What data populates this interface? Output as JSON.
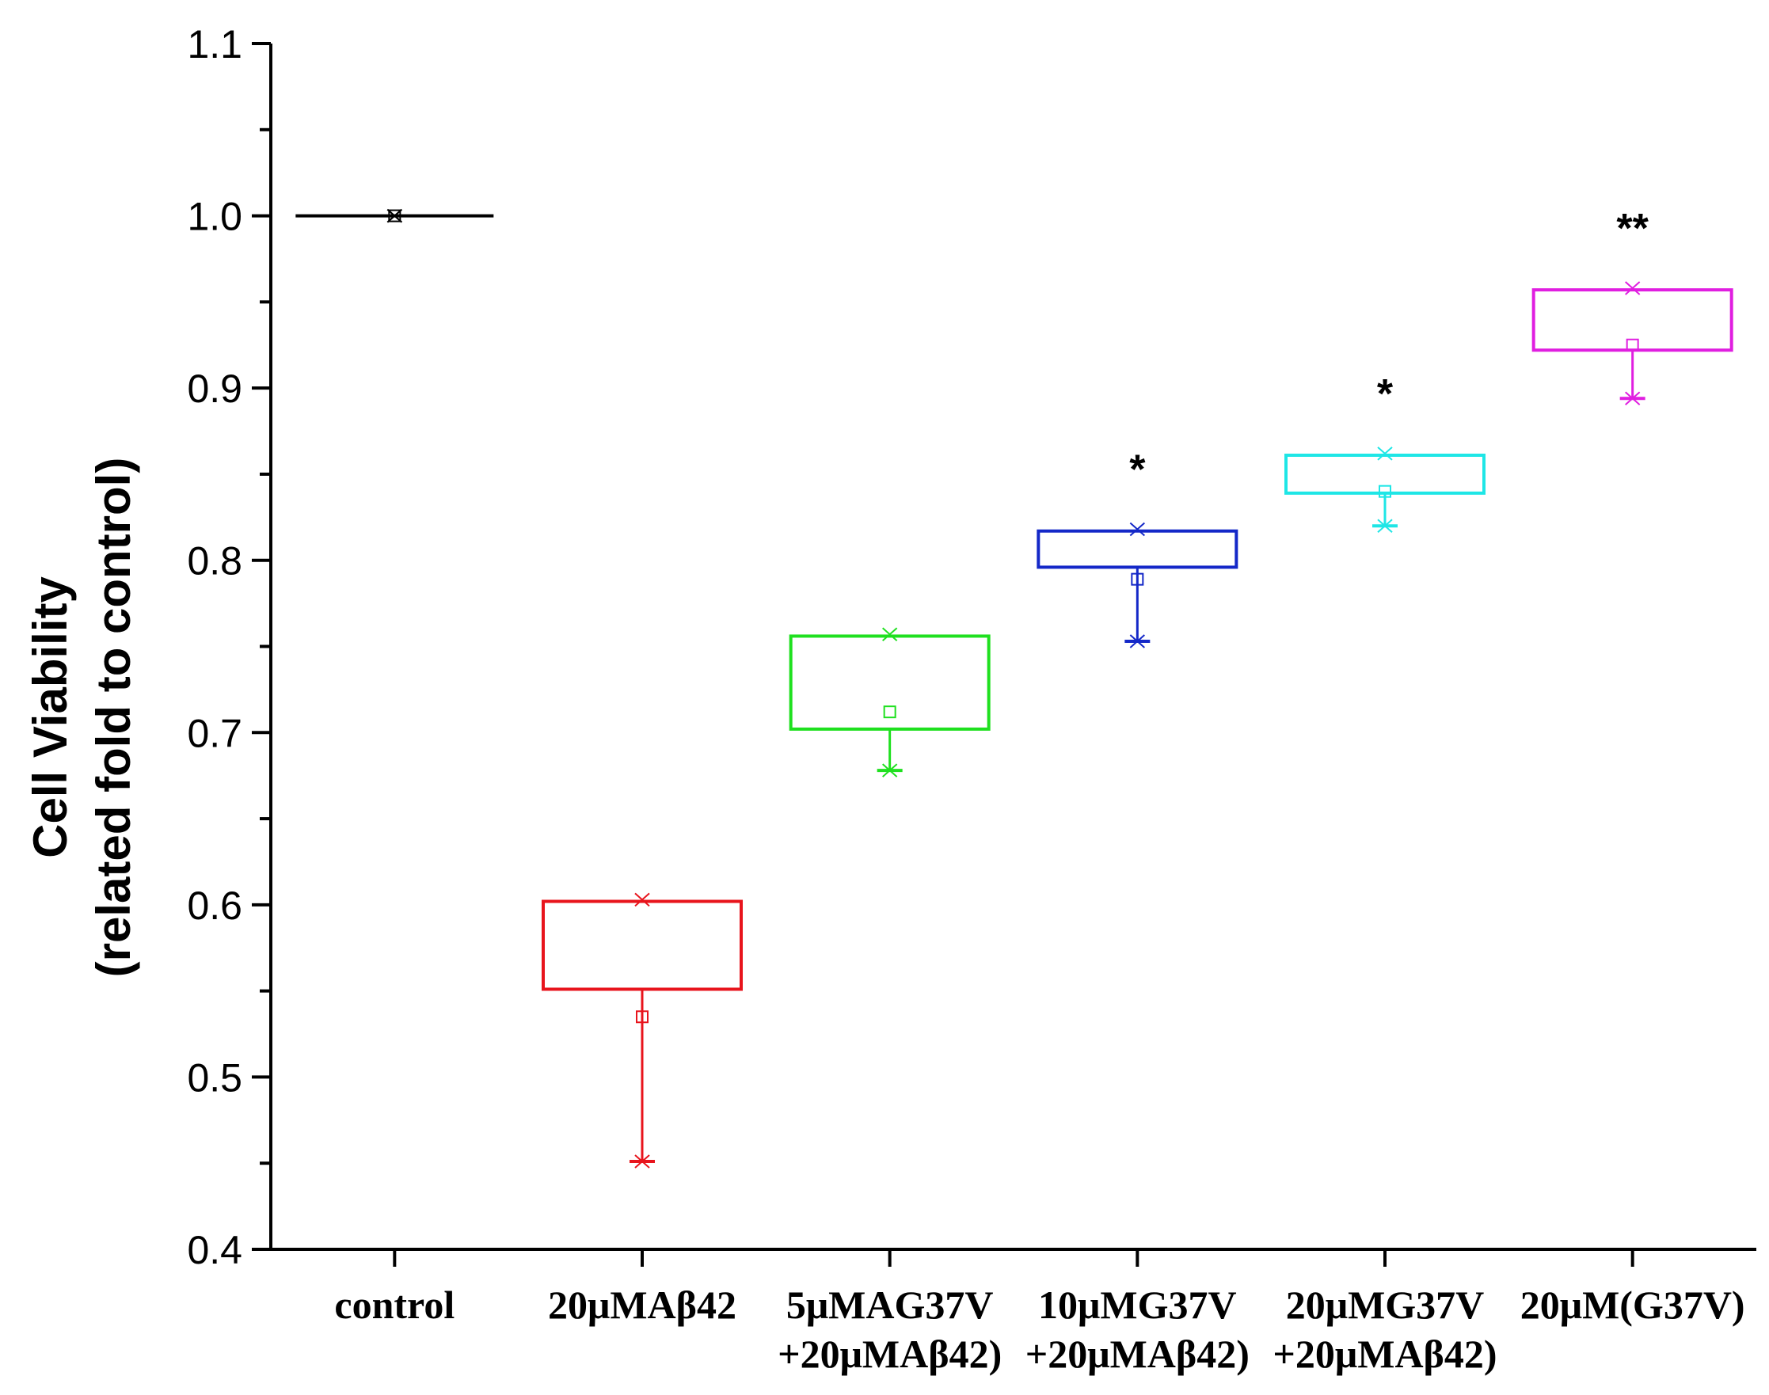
{
  "chart_data": {
    "type": "box",
    "title": "",
    "xlabel": "",
    "ylabel": "Cell Viability",
    "ylabel_line2": "(related fold to control)",
    "ylim": [
      0.4,
      1.1
    ],
    "yticks": [
      "0.4",
      "0.5",
      "0.6",
      "0.7",
      "0.8",
      "0.9",
      "1.0",
      "1.1"
    ],
    "grid": false,
    "categories": [
      {
        "label_lines": [
          "control"
        ],
        "color": "#000000",
        "q1": 1.0,
        "q3": 1.0,
        "mean": 1.0,
        "whisker_low": 1.0,
        "whisker_high": 1.0,
        "max": 1.0,
        "min": 1.0,
        "significance": ""
      },
      {
        "label_lines": [
          "20μMAβ42"
        ],
        "color": "#e8141c",
        "q1": 0.551,
        "q3": 0.602,
        "mean": 0.535,
        "whisker_low": 0.451,
        "whisker_high": 0.602,
        "max": 0.603,
        "min": 0.451,
        "significance": ""
      },
      {
        "label_lines": [
          "5μMAG37V",
          "+20μMAβ42)"
        ],
        "color": "#1fe01f",
        "q1": 0.702,
        "q3": 0.756,
        "mean": 0.712,
        "whisker_low": 0.678,
        "whisker_high": 0.756,
        "max": 0.757,
        "min": 0.678,
        "significance": ""
      },
      {
        "label_lines": [
          "10μMG37V",
          "+20μMAβ42)"
        ],
        "color": "#1428c8",
        "q1": 0.796,
        "q3": 0.817,
        "mean": 0.789,
        "whisker_low": 0.753,
        "whisker_high": 0.817,
        "max": 0.818,
        "min": 0.753,
        "significance": "*"
      },
      {
        "label_lines": [
          "20μMG37V",
          "+20μMAβ42)"
        ],
        "color": "#1ee6e6",
        "q1": 0.839,
        "q3": 0.861,
        "mean": 0.84,
        "whisker_low": 0.82,
        "whisker_high": 0.861,
        "max": 0.862,
        "min": 0.82,
        "significance": "*"
      },
      {
        "label_lines": [
          "20μM(G37V)"
        ],
        "color": "#e01ee0",
        "q1": 0.922,
        "q3": 0.957,
        "mean": 0.925,
        "whisker_low": 0.894,
        "whisker_high": 0.957,
        "max": 0.958,
        "min": 0.894,
        "significance": "**"
      }
    ]
  }
}
